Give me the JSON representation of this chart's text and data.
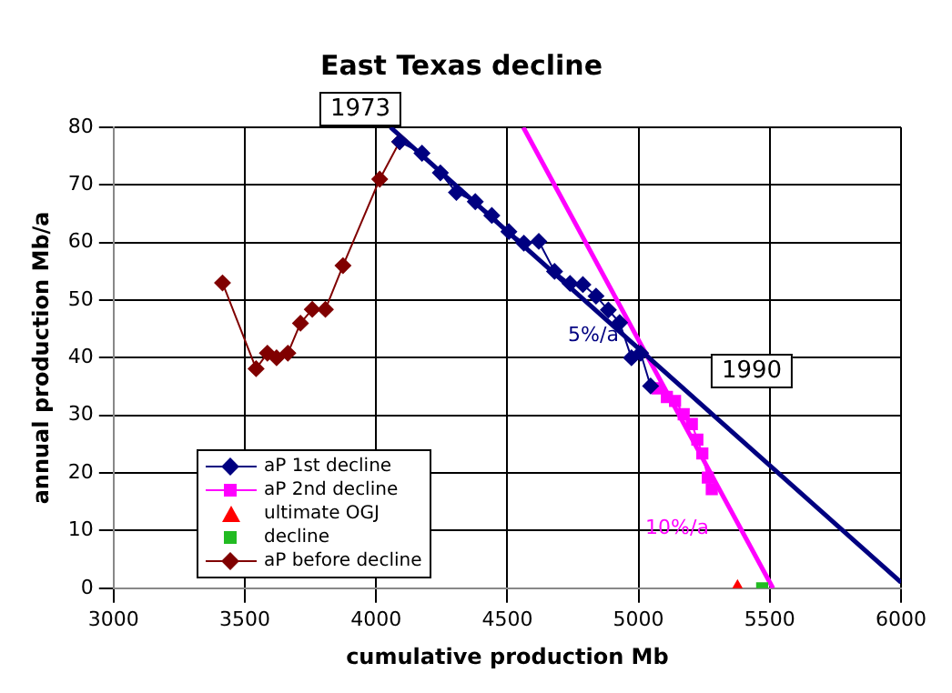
{
  "chart_data": {
    "type": "scatter",
    "title": "East Texas decline",
    "xlabel": "cumulative production Mb",
    "ylabel": "annual production Mb/a",
    "xlim": [
      3000,
      6000
    ],
    "xticks": [
      3000,
      3500,
      4000,
      4500,
      5000,
      5500,
      6000
    ],
    "ylim": [
      0,
      80
    ],
    "yticks": [
      0,
      10,
      20,
      30,
      40,
      50,
      60,
      70,
      80
    ],
    "grid": true,
    "legend": "bottom left",
    "annotations": [
      "1973",
      "1990",
      "5%/a",
      "10%/a"
    ],
    "series": [
      {
        "name": "aP 1st decline",
        "type": "line",
        "color": "#000080",
        "marker": "diamond",
        "x": [
          4090,
          4175,
          4245,
          4306,
          4378,
          4441,
          4506,
          4563,
          4620,
          4680,
          4739,
          4788,
          4838,
          4885,
          4928,
          4973,
          5008,
          5046
        ],
        "values": [
          77.5,
          75.5,
          72.1,
          68.7,
          67.1,
          64.7,
          61.9,
          59.9,
          60.2,
          55.0,
          52.9,
          52.7,
          50.7,
          48.3,
          46.1,
          40.0,
          40.8,
          35.1
        ]
      },
      {
        "name": "aP 2nd decline",
        "type": "line",
        "color": "#ff00ff",
        "marker": "square",
        "x": [
          5072,
          5108,
          5139,
          5172,
          5203,
          5224,
          5243,
          5264,
          5279
        ],
        "values": [
          34.7,
          33.2,
          32.5,
          30.2,
          28.5,
          25.8,
          23.4,
          19.2,
          17.2
        ]
      },
      {
        "name": "ultimate OGJ",
        "type": "scatter",
        "color": "#ff0000",
        "marker": "triangle",
        "x": [
          5377
        ],
        "values": [
          0
        ]
      },
      {
        "name": "decline",
        "type": "scatter",
        "color": "#22bb22",
        "marker": "square",
        "x": [
          5471
        ],
        "values": [
          0
        ]
      },
      {
        "name": "aP before decline",
        "type": "line",
        "color": "#800000",
        "marker": "diamond",
        "x": [
          3415,
          3543,
          3586,
          3621,
          3664,
          3712,
          3757,
          3807,
          3874,
          4014,
          4090
        ],
        "values": [
          53.0,
          38.1,
          40.8,
          40.0,
          40.8,
          46.0,
          48.4,
          48.4,
          56.0,
          71.0,
          77.5
        ]
      },
      {
        "type": "line",
        "color": "#000080",
        "marker": "none",
        "x": [
          4055,
          6000
        ],
        "values": [
          80,
          1
        ]
      },
      {
        "type": "line",
        "color": "#ff00ff",
        "marker": "none",
        "x": [
          4561,
          5512
        ],
        "values": [
          80,
          0
        ]
      }
    ]
  }
}
